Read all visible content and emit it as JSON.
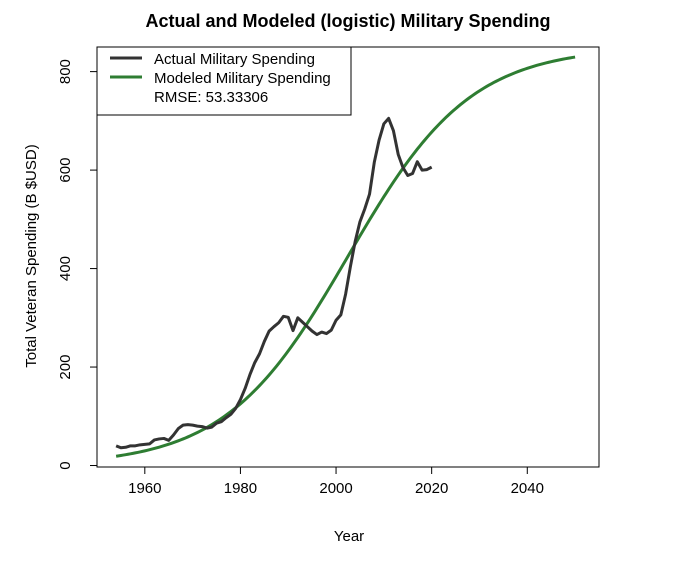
{
  "chart_data": {
    "type": "line",
    "title": "Actual and Modeled (logistic) Military Spending",
    "xlabel": "Year",
    "ylabel": "Total Veteran Spending (B $USD)",
    "xlim": [
      1950,
      2055
    ],
    "ylim": [
      -3,
      850
    ],
    "xticks": [
      1960,
      1980,
      2000,
      2020,
      2040
    ],
    "yticks": [
      0,
      200,
      400,
      600,
      800
    ],
    "grid": false,
    "legend_position": "top-left",
    "rmse_label": "RMSE: 53.33306",
    "series": [
      {
        "name": "Actual Military Spending",
        "color": "#333333",
        "x": [
          1954,
          1955,
          1956,
          1957,
          1958,
          1959,
          1960,
          1961,
          1962,
          1963,
          1964,
          1965,
          1966,
          1967,
          1968,
          1969,
          1970,
          1971,
          1972,
          1973,
          1974,
          1975,
          1976,
          1977,
          1978,
          1979,
          1980,
          1981,
          1982,
          1983,
          1984,
          1985,
          1986,
          1987,
          1988,
          1989,
          1990,
          1991,
          1992,
          1993,
          1994,
          1995,
          1996,
          1997,
          1998,
          1999,
          2000,
          2001,
          2002,
          2003,
          2004,
          2005,
          2006,
          2007,
          2008,
          2009,
          2010,
          2011,
          2012,
          2013,
          2014,
          2015,
          2016,
          2017,
          2018,
          2019,
          2020
        ],
        "y": [
          40,
          36,
          37,
          40,
          40,
          42,
          43,
          44,
          52,
          54,
          55,
          51,
          62,
          75,
          82,
          83,
          82,
          80,
          79,
          76,
          78,
          86,
          89,
          97,
          104,
          116,
          134,
          157,
          185,
          209,
          227,
          252,
          273,
          282,
          290,
          303,
          301,
          274,
          300,
          291,
          282,
          273,
          266,
          271,
          268,
          275,
          295,
          306,
          348,
          404,
          455,
          495,
          521,
          551,
          616,
          661,
          694,
          705,
          680,
          632,
          605,
          589,
          593,
          617,
          600,
          601,
          606
        ]
      },
      {
        "name": "Modeled Military Spending",
        "color": "#2e7d32",
        "model": {
          "L": 850,
          "k": 0.078,
          "x0": 2002.5
        },
        "x_start": 1954,
        "x_end": 2050
      }
    ]
  }
}
